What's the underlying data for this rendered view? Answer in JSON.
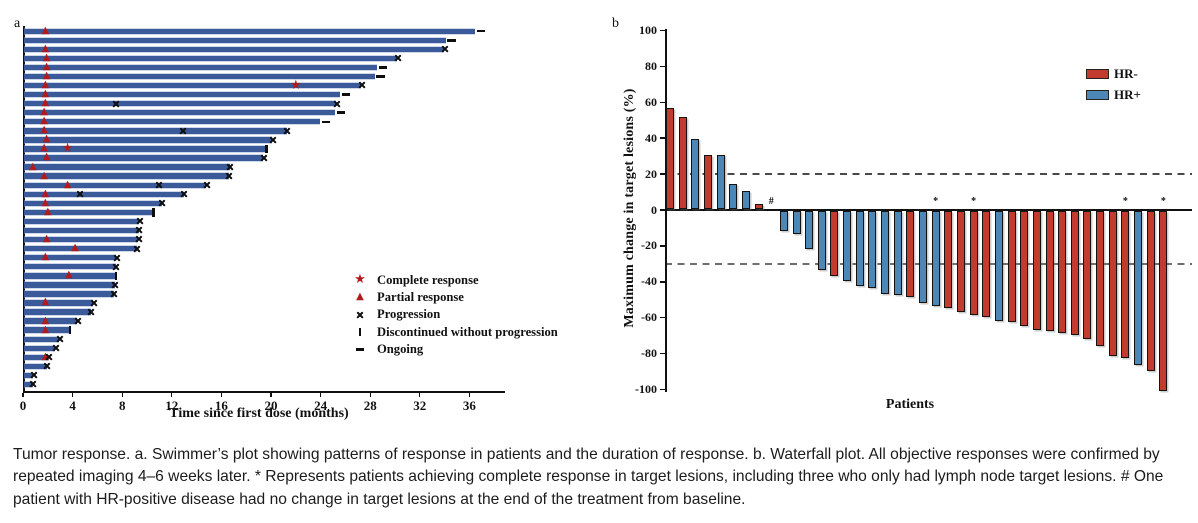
{
  "panels": {
    "a": {
      "label": "a"
    },
    "b": {
      "label": "b"
    }
  },
  "caption": "Tumor response. a. Swimmer’s plot showing patterns of response in patients and the duration of response. b. Waterfall plot. All objective responses were confirmed by repeated imaging 4–6 weeks later. * Represents patients achieving complete response in target lesions, including three who only had lymph node target lesions. # One patient with HR-positive disease had no change in target lesions at the end of the treatment from baseline.",
  "chart_data": [
    {
      "panel": "a",
      "type": "bar",
      "subtype": "swimmer",
      "xlabel": "Time since first dose (months)",
      "xticks": [
        0,
        4,
        8,
        12,
        16,
        20,
        24,
        28,
        32,
        36
      ],
      "xlim": [
        0,
        38.8
      ],
      "grid": false,
      "bar_color": "#3a5a9a",
      "marker_color": "#b01b1e",
      "progression_mark_color": "#0e0e0e",
      "legend_position": "inside lower right",
      "legend": [
        {
          "symbol": "star",
          "label": "Complete response"
        },
        {
          "symbol": "triangle",
          "label": "Partial response"
        },
        {
          "symbol": "x",
          "label": "Progression"
        },
        {
          "symbol": "vbar",
          "label": "Discontinued without progression"
        },
        {
          "symbol": "dash",
          "label": "Ongoing"
        }
      ],
      "patients": [
        {
          "duration_months": 36.4,
          "end": "ongoing",
          "partial_response_at": [
            1.8
          ]
        },
        {
          "duration_months": 34.0,
          "end": "ongoing",
          "partial_response_at": []
        },
        {
          "duration_months": 33.9,
          "end": "progression",
          "partial_response_at": [
            1.8
          ]
        },
        {
          "duration_months": 30.1,
          "end": "progression",
          "partial_response_at": [
            1.9
          ]
        },
        {
          "duration_months": 28.5,
          "end": "ongoing",
          "partial_response_at": [
            1.9
          ]
        },
        {
          "duration_months": 28.3,
          "end": "ongoing",
          "partial_response_at": [
            1.9
          ]
        },
        {
          "duration_months": 27.2,
          "end": "progression",
          "partial_response_at": [
            1.8
          ],
          "complete_response_at": [
            22.0
          ]
        },
        {
          "duration_months": 25.5,
          "end": "ongoing",
          "partial_response_at": [
            1.8
          ]
        },
        {
          "duration_months": 25.2,
          "end": "progression",
          "partial_response_at": [
            1.8
          ],
          "progression_at": [
            7.5
          ]
        },
        {
          "duration_months": 25.1,
          "end": "ongoing",
          "partial_response_at": [
            1.7
          ]
        },
        {
          "duration_months": 23.9,
          "end": "ongoing",
          "partial_response_at": [
            1.7
          ]
        },
        {
          "duration_months": 21.2,
          "end": "progression",
          "partial_response_at": [
            1.7
          ],
          "progression_at": [
            12.9
          ]
        },
        {
          "duration_months": 20.0,
          "end": "progression",
          "partial_response_at": [
            1.9
          ]
        },
        {
          "duration_months": 19.5,
          "end": "discontinued",
          "partial_response_at": [
            1.7
          ],
          "complete_response_at": [
            3.6
          ]
        },
        {
          "duration_months": 19.3,
          "end": "progression",
          "partial_response_at": [
            1.9
          ]
        },
        {
          "duration_months": 16.6,
          "end": "progression",
          "partial_response_at": [
            0.8
          ]
        },
        {
          "duration_months": 16.5,
          "end": "progression",
          "partial_response_at": [
            1.7
          ]
        },
        {
          "duration_months": 14.7,
          "end": "progression",
          "partial_response_at": [
            3.6
          ],
          "progression_at": [
            11.0
          ]
        },
        {
          "duration_months": 12.9,
          "end": "progression",
          "partial_response_at": [
            1.8
          ],
          "progression_at": [
            4.6
          ]
        },
        {
          "duration_months": 11.1,
          "end": "progression",
          "partial_response_at": [
            1.8
          ]
        },
        {
          "duration_months": 10.4,
          "end": "discontinued",
          "partial_response_at": [
            2.0
          ]
        },
        {
          "duration_months": 9.3,
          "end": "progression",
          "partial_response_at": []
        },
        {
          "duration_months": 9.25,
          "end": "progression",
          "partial_response_at": []
        },
        {
          "duration_months": 9.2,
          "end": "progression",
          "partial_response_at": [
            1.9
          ]
        },
        {
          "duration_months": 9.1,
          "end": "progression",
          "partial_response_at": [
            4.2
          ]
        },
        {
          "duration_months": 7.45,
          "end": "progression",
          "partial_response_at": [
            1.8
          ]
        },
        {
          "duration_months": 7.4,
          "end": "progression",
          "partial_response_at": []
        },
        {
          "duration_months": 7.35,
          "end": "discontinued",
          "partial_response_at": [
            3.7
          ]
        },
        {
          "duration_months": 7.3,
          "end": "progression",
          "partial_response_at": []
        },
        {
          "duration_months": 7.25,
          "end": "progression",
          "partial_response_at": []
        },
        {
          "duration_months": 5.6,
          "end": "progression",
          "partial_response_at": [
            1.8
          ]
        },
        {
          "duration_months": 5.4,
          "end": "progression",
          "partial_response_at": []
        },
        {
          "duration_months": 4.3,
          "end": "progression",
          "partial_response_at": [
            1.8
          ]
        },
        {
          "duration_months": 3.65,
          "end": "discontinued",
          "partial_response_at": [
            1.8
          ]
        },
        {
          "duration_months": 2.85,
          "end": "progression",
          "partial_response_at": []
        },
        {
          "duration_months": 2.5,
          "end": "progression",
          "partial_response_at": []
        },
        {
          "duration_months": 1.95,
          "end": "progression",
          "partial_response_at": [
            1.8
          ]
        },
        {
          "duration_months": 1.85,
          "end": "progression",
          "partial_response_at": []
        },
        {
          "duration_months": 0.75,
          "end": "progression",
          "partial_response_at": []
        },
        {
          "duration_months": 0.7,
          "end": "progression",
          "partial_response_at": []
        }
      ]
    },
    {
      "panel": "b",
      "type": "bar",
      "subtype": "waterfall",
      "ylabel": "Maximum change in target lesions (%)",
      "xlabel": "Patients",
      "yticks": [
        100,
        80,
        60,
        40,
        20,
        0,
        -20,
        -40,
        -60,
        -80,
        -100
      ],
      "ylim": [
        -100,
        100
      ],
      "grid": false,
      "reference_lines": [
        20,
        -30
      ],
      "legend_position": "upper right inside",
      "legend": [
        {
          "label": "HR-",
          "color": "#c13b2f"
        },
        {
          "label": "HR+",
          "color": "#4d87b5"
        }
      ],
      "bars": [
        {
          "value": 56,
          "group": "HR-"
        },
        {
          "value": 51,
          "group": "HR-"
        },
        {
          "value": 39,
          "group": "HR+"
        },
        {
          "value": 30,
          "group": "HR-"
        },
        {
          "value": 30,
          "group": "HR+"
        },
        {
          "value": 14,
          "group": "HR+"
        },
        {
          "value": 10,
          "group": "HR+"
        },
        {
          "value": 3,
          "group": "HR-"
        },
        {
          "value": 0,
          "group": "HR+",
          "annotation": "#"
        },
        {
          "value": -11,
          "group": "HR+"
        },
        {
          "value": -13,
          "group": "HR+"
        },
        {
          "value": -21,
          "group": "HR+"
        },
        {
          "value": -33,
          "group": "HR+"
        },
        {
          "value": -36,
          "group": "HR-"
        },
        {
          "value": -39,
          "group": "HR+"
        },
        {
          "value": -42,
          "group": "HR+"
        },
        {
          "value": -43,
          "group": "HR+"
        },
        {
          "value": -46,
          "group": "HR+"
        },
        {
          "value": -47,
          "group": "HR+"
        },
        {
          "value": -48,
          "group": "HR-"
        },
        {
          "value": -51,
          "group": "HR+"
        },
        {
          "value": -53,
          "group": "HR+",
          "annotation": "*"
        },
        {
          "value": -54,
          "group": "HR-"
        },
        {
          "value": -56,
          "group": "HR-"
        },
        {
          "value": -58,
          "group": "HR-",
          "annotation": "*"
        },
        {
          "value": -59,
          "group": "HR-"
        },
        {
          "value": -61,
          "group": "HR+"
        },
        {
          "value": -62,
          "group": "HR-"
        },
        {
          "value": -64,
          "group": "HR-"
        },
        {
          "value": -66,
          "group": "HR-"
        },
        {
          "value": -67,
          "group": "HR-"
        },
        {
          "value": -68,
          "group": "HR-"
        },
        {
          "value": -69,
          "group": "HR-"
        },
        {
          "value": -71,
          "group": "HR-"
        },
        {
          "value": -75,
          "group": "HR-"
        },
        {
          "value": -81,
          "group": "HR-"
        },
        {
          "value": -82,
          "group": "HR-",
          "annotation": "*"
        },
        {
          "value": -86,
          "group": "HR+"
        },
        {
          "value": -89,
          "group": "HR-"
        },
        {
          "value": -100,
          "group": "HR-",
          "annotation": "*"
        }
      ]
    }
  ]
}
